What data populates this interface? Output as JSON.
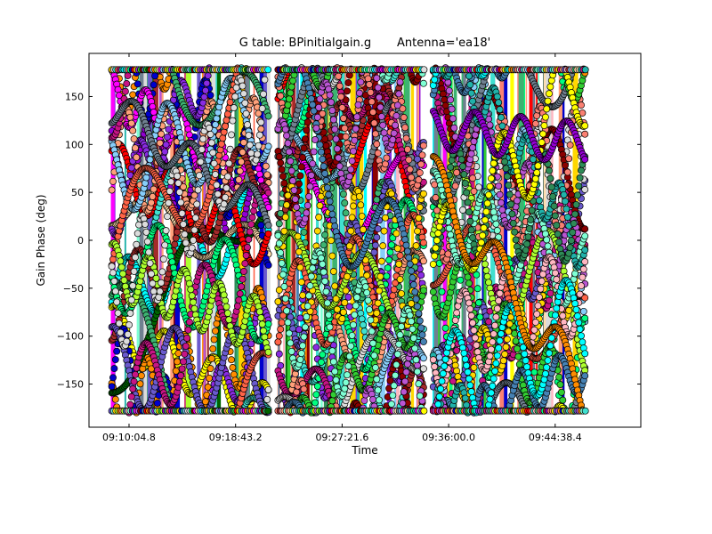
{
  "chart_data": {
    "type": "scatter",
    "title": "G table: BPinitialgain.g       Antenna='ea18'",
    "xlabel": "Time",
    "ylabel": "Gain Phase (deg)",
    "xlim": [
      "09:06:50",
      "09:51:35"
    ],
    "ylim": [
      -195,
      195
    ],
    "xticks": [
      "09:10:04.8",
      "09:18:43.2",
      "09:27:21.6",
      "09:36:00.0",
      "09:44:38.4"
    ],
    "yticks": [
      150,
      100,
      50,
      0,
      -50,
      -100,
      -150
    ],
    "grid": false,
    "legend": "none",
    "marker": "circle",
    "scans": [
      {
        "start": "09:08:41",
        "end": "09:21:25"
      },
      {
        "start": "09:22:10",
        "end": "09:34:00"
      },
      {
        "start": "09:34:45",
        "end": "09:47:05"
      }
    ],
    "series_colors": [
      "#00ffff",
      "#ffff00",
      "#ff8c00",
      "#9400d3",
      "#006400",
      "#ffdead",
      "#0000cd",
      "#ff0000",
      "#ff00ff",
      "#40e0d0",
      "#8a2be2",
      "#a52a2a",
      "#ffa07a",
      "#3cb371",
      "#6a5acd",
      "#87cefa",
      "#00ff7f",
      "#c71585",
      "#708090",
      "#ff6347",
      "#adff2f",
      "#dcdcdc",
      "#8b0000",
      "#fa8072",
      "#32cd32",
      "#ffd700",
      "#4682b4",
      "#ba55d3",
      "#7fffd4",
      "#20b2aa",
      "#ffb6c1",
      "#2e8b57"
    ]
  }
}
